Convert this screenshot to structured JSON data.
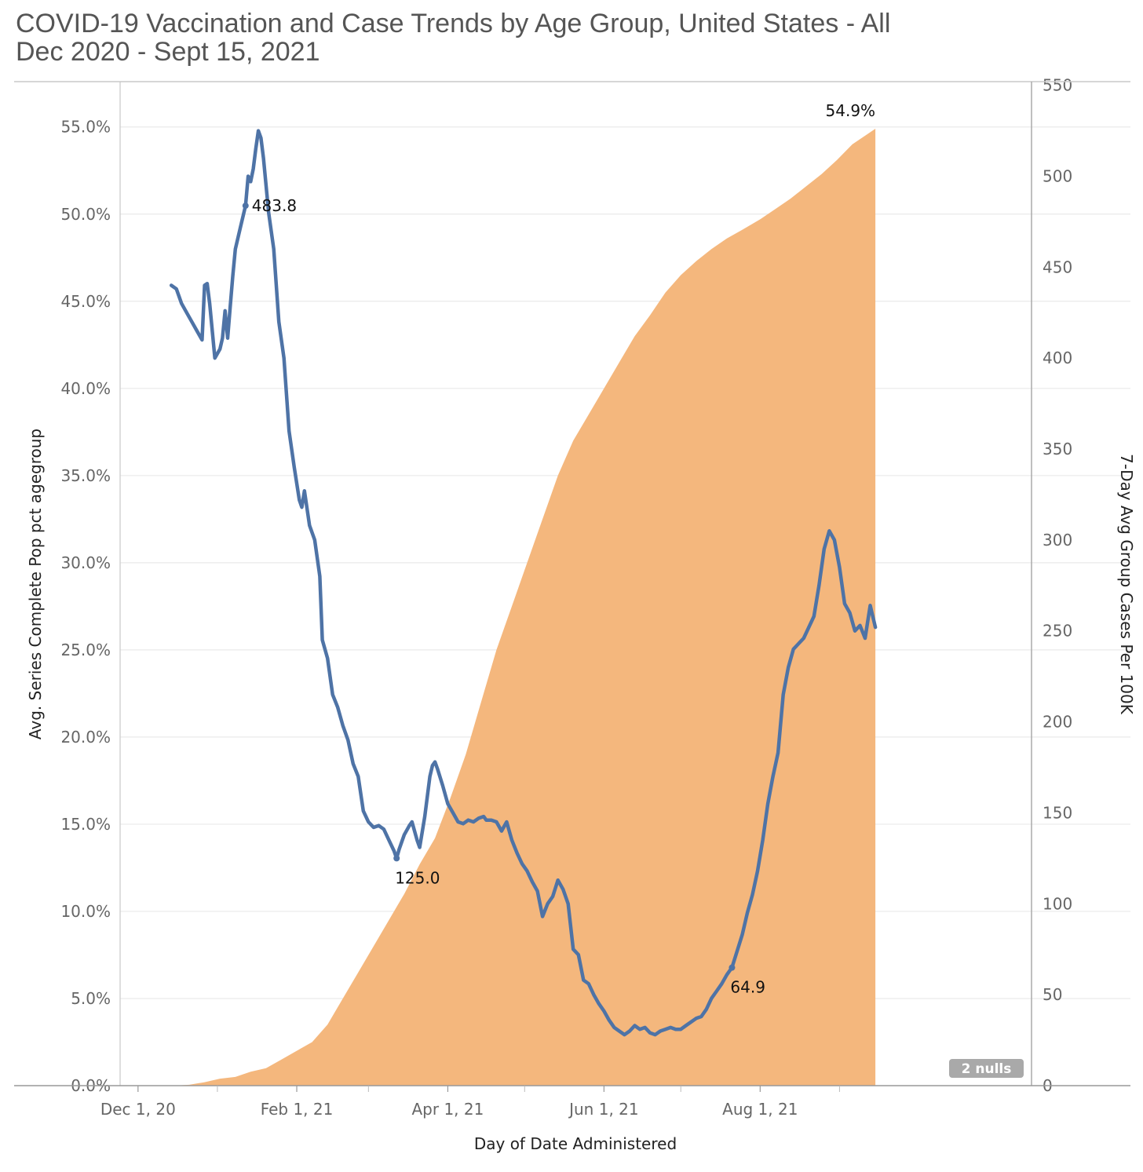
{
  "title": {
    "line1": "COVID-19 Vaccination and Case Trends by Age Group, United States - All",
    "line2": "Dec 2020 - Sept 15, 2021"
  },
  "colors": {
    "vaccination_area": "#f4b77d",
    "cases_line": "#4e73a6",
    "gridline": "#eaeaea",
    "axis": "#c8c8c8",
    "nulls_badge": "#a9a9a9"
  },
  "nulls_badge": "2 nulls",
  "chart_data": {
    "type": "area",
    "xlabel": "Day of Date Administered",
    "x_tick_labels": [
      "Dec 1, 20",
      "Feb 1, 21",
      "Apr 1, 21",
      "Jun 1, 21",
      "Aug 1, 21"
    ],
    "x_ticks": [
      "2020-12-01",
      "2021-02-01",
      "2021-04-01",
      "2021-06-01",
      "2021-08-01"
    ],
    "x_minor_ticks": [
      "2021-01-01",
      "2021-03-01",
      "2021-05-01",
      "2021-07-01",
      "2021-09-01"
    ],
    "xlim": [
      "2020-11-24",
      "2021-11-15"
    ],
    "left_axis": {
      "label": "Avg. Series Complete Pop pct agegroup",
      "tick_labels": [
        "0.0%",
        "5.0%",
        "10.0%",
        "15.0%",
        "20.0%",
        "25.0%",
        "30.0%",
        "35.0%",
        "40.0%",
        "45.0%",
        "50.0%",
        "55.0%"
      ],
      "ticks": [
        0,
        5,
        10,
        15,
        20,
        25,
        30,
        35,
        40,
        45,
        50,
        55
      ],
      "ylim": [
        0,
        57.6
      ]
    },
    "right_axis": {
      "label": "7-Day Avg Group Cases Per 100K",
      "tick_labels": [
        "0",
        "50",
        "100",
        "150",
        "200",
        "250",
        "300",
        "350",
        "400",
        "450",
        "500",
        "550"
      ],
      "ticks": [
        0,
        50,
        100,
        150,
        200,
        250,
        300,
        350,
        400,
        450,
        500,
        550
      ],
      "ylim": [
        0,
        552
      ]
    },
    "grid": true,
    "series": [
      {
        "axis": "left",
        "kind": "area",
        "points": [
          [
            "2020-12-01",
            0
          ],
          [
            "2020-12-15",
            0
          ],
          [
            "2020-12-21",
            0.05
          ],
          [
            "2020-12-27",
            0.2
          ],
          [
            "2021-01-02",
            0.4
          ],
          [
            "2021-01-08",
            0.5
          ],
          [
            "2021-01-14",
            0.8
          ],
          [
            "2021-01-20",
            1.0
          ],
          [
            "2021-01-26",
            1.5
          ],
          [
            "2021-02-01",
            2.0
          ],
          [
            "2021-02-07",
            2.5
          ],
          [
            "2021-02-13",
            3.5
          ],
          [
            "2021-02-19",
            5.0
          ],
          [
            "2021-02-25",
            6.5
          ],
          [
            "2021-03-03",
            8.0
          ],
          [
            "2021-03-09",
            9.5
          ],
          [
            "2021-03-15",
            11.0
          ],
          [
            "2021-03-21",
            12.7
          ],
          [
            "2021-03-27",
            14.2
          ],
          [
            "2021-04-02",
            16.5
          ],
          [
            "2021-04-08",
            19.0
          ],
          [
            "2021-04-14",
            22.0
          ],
          [
            "2021-04-20",
            25.0
          ],
          [
            "2021-04-26",
            27.5
          ],
          [
            "2021-05-02",
            30.0
          ],
          [
            "2021-05-08",
            32.5
          ],
          [
            "2021-05-14",
            35.0
          ],
          [
            "2021-05-20",
            37.0
          ],
          [
            "2021-05-26",
            38.5
          ],
          [
            "2021-06-01",
            40.0
          ],
          [
            "2021-06-07",
            41.5
          ],
          [
            "2021-06-13",
            43.0
          ],
          [
            "2021-06-19",
            44.2
          ],
          [
            "2021-06-25",
            45.5
          ],
          [
            "2021-07-01",
            46.5
          ],
          [
            "2021-07-07",
            47.3
          ],
          [
            "2021-07-13",
            48.0
          ],
          [
            "2021-07-19",
            48.6
          ],
          [
            "2021-07-25",
            49.1
          ],
          [
            "2021-08-01",
            49.7
          ],
          [
            "2021-08-07",
            50.3
          ],
          [
            "2021-08-13",
            50.9
          ],
          [
            "2021-08-19",
            51.6
          ],
          [
            "2021-08-25",
            52.3
          ],
          [
            "2021-08-31",
            53.1
          ],
          [
            "2021-09-06",
            54.0
          ],
          [
            "2021-09-15",
            54.9
          ]
        ]
      },
      {
        "axis": "right",
        "kind": "line",
        "points": [
          [
            "2020-12-14",
            440
          ],
          [
            "2020-12-16",
            438
          ],
          [
            "2020-12-18",
            430
          ],
          [
            "2020-12-20",
            425
          ],
          [
            "2020-12-22",
            420
          ],
          [
            "2020-12-24",
            415
          ],
          [
            "2020-12-26",
            410
          ],
          [
            "2020-12-27",
            440
          ],
          [
            "2020-12-28",
            441
          ],
          [
            "2020-12-29",
            430
          ],
          [
            "2020-12-31",
            400
          ],
          [
            "2021-01-02",
            405
          ],
          [
            "2021-01-03",
            411
          ],
          [
            "2021-01-04",
            426
          ],
          [
            "2021-01-05",
            411
          ],
          [
            "2021-01-06",
            428
          ],
          [
            "2021-01-07",
            445
          ],
          [
            "2021-01-08",
            460
          ],
          [
            "2021-01-10",
            472
          ],
          [
            "2021-01-12",
            483.8
          ],
          [
            "2021-01-13",
            500
          ],
          [
            "2021-01-14",
            497
          ],
          [
            "2021-01-15",
            504
          ],
          [
            "2021-01-16",
            515
          ],
          [
            "2021-01-17",
            525
          ],
          [
            "2021-01-18",
            521
          ],
          [
            "2021-01-19",
            510
          ],
          [
            "2021-01-21",
            480
          ],
          [
            "2021-01-23",
            460
          ],
          [
            "2021-01-25",
            420
          ],
          [
            "2021-01-27",
            400
          ],
          [
            "2021-01-29",
            360
          ],
          [
            "2021-01-31",
            340
          ],
          [
            "2021-02-02",
            322
          ],
          [
            "2021-02-03",
            318
          ],
          [
            "2021-02-04",
            327
          ],
          [
            "2021-02-06",
            308
          ],
          [
            "2021-02-08",
            300
          ],
          [
            "2021-02-10",
            280
          ],
          [
            "2021-02-11",
            245
          ],
          [
            "2021-02-13",
            235
          ],
          [
            "2021-02-15",
            215
          ],
          [
            "2021-02-17",
            208
          ],
          [
            "2021-02-19",
            198
          ],
          [
            "2021-02-21",
            190
          ],
          [
            "2021-02-23",
            177
          ],
          [
            "2021-02-25",
            170
          ],
          [
            "2021-02-27",
            151
          ],
          [
            "2021-03-01",
            145
          ],
          [
            "2021-03-03",
            142
          ],
          [
            "2021-03-05",
            143
          ],
          [
            "2021-03-07",
            141
          ],
          [
            "2021-03-09",
            135
          ],
          [
            "2021-03-11",
            129
          ],
          [
            "2021-03-12",
            125
          ],
          [
            "2021-03-13",
            130
          ],
          [
            "2021-03-15",
            138
          ],
          [
            "2021-03-17",
            143
          ],
          [
            "2021-03-18",
            145
          ],
          [
            "2021-03-20",
            135
          ],
          [
            "2021-03-21",
            131
          ],
          [
            "2021-03-23",
            148
          ],
          [
            "2021-03-25",
            170
          ],
          [
            "2021-03-26",
            176
          ],
          [
            "2021-03-27",
            178
          ],
          [
            "2021-03-28",
            174
          ],
          [
            "2021-03-30",
            165
          ],
          [
            "2021-04-01",
            155
          ],
          [
            "2021-04-03",
            150
          ],
          [
            "2021-04-05",
            145
          ],
          [
            "2021-04-07",
            144
          ],
          [
            "2021-04-09",
            146
          ],
          [
            "2021-04-11",
            145
          ],
          [
            "2021-04-13",
            147
          ],
          [
            "2021-04-15",
            148
          ],
          [
            "2021-04-16",
            146
          ],
          [
            "2021-04-18",
            146
          ],
          [
            "2021-04-20",
            145
          ],
          [
            "2021-04-22",
            140
          ],
          [
            "2021-04-24",
            145
          ],
          [
            "2021-04-26",
            135
          ],
          [
            "2021-04-28",
            128
          ],
          [
            "2021-04-30",
            122
          ],
          [
            "2021-05-02",
            118
          ],
          [
            "2021-05-04",
            112
          ],
          [
            "2021-05-06",
            107
          ],
          [
            "2021-05-08",
            93
          ],
          [
            "2021-05-10",
            100
          ],
          [
            "2021-05-12",
            104
          ],
          [
            "2021-05-14",
            113
          ],
          [
            "2021-05-16",
            108
          ],
          [
            "2021-05-18",
            100
          ],
          [
            "2021-05-20",
            75
          ],
          [
            "2021-05-22",
            72
          ],
          [
            "2021-05-24",
            58
          ],
          [
            "2021-05-26",
            56
          ],
          [
            "2021-05-28",
            50
          ],
          [
            "2021-05-30",
            45
          ],
          [
            "2021-06-01",
            41
          ],
          [
            "2021-06-03",
            36
          ],
          [
            "2021-06-05",
            32
          ],
          [
            "2021-06-07",
            30
          ],
          [
            "2021-06-09",
            28
          ],
          [
            "2021-06-11",
            30
          ],
          [
            "2021-06-13",
            33
          ],
          [
            "2021-06-15",
            31
          ],
          [
            "2021-06-17",
            32
          ],
          [
            "2021-06-19",
            29
          ],
          [
            "2021-06-21",
            28
          ],
          [
            "2021-06-23",
            30
          ],
          [
            "2021-06-25",
            31
          ],
          [
            "2021-06-27",
            32
          ],
          [
            "2021-06-29",
            31
          ],
          [
            "2021-07-01",
            31
          ],
          [
            "2021-07-03",
            33
          ],
          [
            "2021-07-05",
            35
          ],
          [
            "2021-07-07",
            37
          ],
          [
            "2021-07-09",
            38
          ],
          [
            "2021-07-11",
            42
          ],
          [
            "2021-07-13",
            48
          ],
          [
            "2021-07-15",
            52
          ],
          [
            "2021-07-17",
            56
          ],
          [
            "2021-07-19",
            61
          ],
          [
            "2021-07-21",
            64.9
          ],
          [
            "2021-07-23",
            74
          ],
          [
            "2021-07-25",
            83
          ],
          [
            "2021-07-27",
            95
          ],
          [
            "2021-07-29",
            105
          ],
          [
            "2021-07-31",
            118
          ],
          [
            "2021-08-02",
            135
          ],
          [
            "2021-08-04",
            155
          ],
          [
            "2021-08-06",
            170
          ],
          [
            "2021-08-08",
            183
          ],
          [
            "2021-08-10",
            215
          ],
          [
            "2021-08-12",
            230
          ],
          [
            "2021-08-14",
            240
          ],
          [
            "2021-08-16",
            243
          ],
          [
            "2021-08-18",
            246
          ],
          [
            "2021-08-20",
            252
          ],
          [
            "2021-08-22",
            258
          ],
          [
            "2021-08-24",
            275
          ],
          [
            "2021-08-26",
            295
          ],
          [
            "2021-08-28",
            305
          ],
          [
            "2021-08-30",
            300
          ],
          [
            "2021-09-01",
            285
          ],
          [
            "2021-09-03",
            265
          ],
          [
            "2021-09-05",
            260
          ],
          [
            "2021-09-07",
            250
          ],
          [
            "2021-09-09",
            253
          ],
          [
            "2021-09-11",
            246
          ],
          [
            "2021-09-13",
            264
          ],
          [
            "2021-09-15",
            252
          ]
        ]
      }
    ],
    "annotations": [
      {
        "text": "54.9%",
        "series": 0,
        "x": "2021-09-15",
        "y": 54.9,
        "pos": "above-left"
      },
      {
        "text": "483.8",
        "series": 1,
        "x": "2021-01-12",
        "y": 483.8,
        "pos": "right"
      },
      {
        "text": "125.0",
        "series": 1,
        "x": "2021-03-12",
        "y": 125.0,
        "pos": "below"
      },
      {
        "text": "64.9",
        "series": 1,
        "x": "2021-07-21",
        "y": 64.9,
        "pos": "below-right"
      }
    ]
  }
}
